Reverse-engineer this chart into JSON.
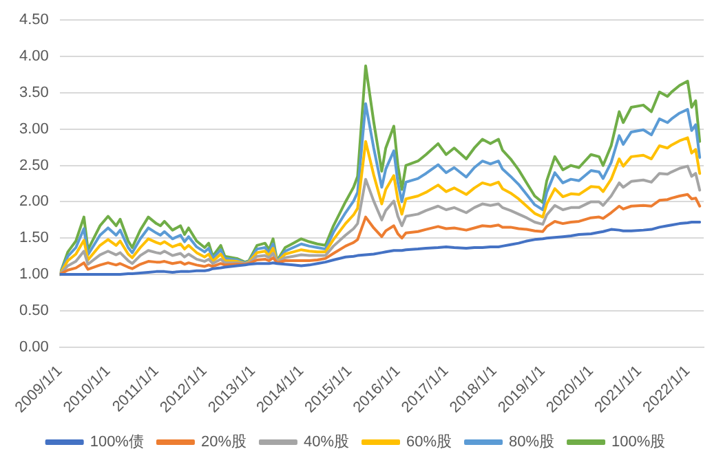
{
  "chart_data": {
    "type": "line",
    "x": [
      "2009-01",
      "2009-03",
      "2009-05",
      "2009-07",
      "2009-08",
      "2009-11",
      "2010-01",
      "2010-03",
      "2010-04",
      "2010-06",
      "2010-07",
      "2010-09",
      "2010-11",
      "2011-01",
      "2011-02",
      "2011-03",
      "2011-05",
      "2011-07",
      "2011-08",
      "2011-09",
      "2011-11",
      "2012-01",
      "2012-02",
      "2012-03",
      "2012-05",
      "2012-06",
      "2012-09",
      "2012-11",
      "2012-12",
      "2013-02",
      "2013-04",
      "2013-05",
      "2013-06",
      "2013-07",
      "2013-09",
      "2013-11",
      "2014-01",
      "2014-03",
      "2014-05",
      "2014-07",
      "2014-09",
      "2014-12",
      "2015-02",
      "2015-03",
      "2015-05",
      "2015-07",
      "2015-09",
      "2015-10",
      "2015-12",
      "2016-01",
      "2016-02",
      "2016-03",
      "2016-06",
      "2016-08",
      "2016-11",
      "2017-01",
      "2017-03",
      "2017-06",
      "2017-08",
      "2017-10",
      "2017-12",
      "2018-02",
      "2018-03",
      "2018-05",
      "2018-07",
      "2018-09",
      "2018-11",
      "2019-01",
      "2019-02",
      "2019-04",
      "2019-06",
      "2019-08",
      "2019-10",
      "2020-01",
      "2020-03",
      "2020-04",
      "2020-06",
      "2020-08",
      "2020-09",
      "2020-11",
      "2021-02",
      "2021-04",
      "2021-06",
      "2021-08",
      "2021-09",
      "2021-11",
      "2022-01",
      "2022-02",
      "2022-03",
      "2022-04"
    ],
    "series": [
      {
        "name": "100%债",
        "color": "#4472c4",
        "values": [
          1.0,
          1.0,
          1.0,
          1.0,
          1.0,
          1.0,
          1.0,
          1.0,
          1.0,
          1.01,
          1.01,
          1.02,
          1.03,
          1.04,
          1.04,
          1.04,
          1.03,
          1.04,
          1.04,
          1.04,
          1.05,
          1.05,
          1.06,
          1.08,
          1.09,
          1.1,
          1.12,
          1.13,
          1.14,
          1.15,
          1.15,
          1.15,
          1.16,
          1.15,
          1.14,
          1.13,
          1.12,
          1.13,
          1.15,
          1.17,
          1.2,
          1.24,
          1.25,
          1.26,
          1.27,
          1.28,
          1.3,
          1.31,
          1.33,
          1.33,
          1.33,
          1.34,
          1.35,
          1.36,
          1.37,
          1.38,
          1.37,
          1.36,
          1.37,
          1.37,
          1.38,
          1.38,
          1.39,
          1.41,
          1.43,
          1.46,
          1.48,
          1.49,
          1.5,
          1.51,
          1.52,
          1.53,
          1.55,
          1.56,
          1.58,
          1.59,
          1.62,
          1.61,
          1.6,
          1.6,
          1.61,
          1.62,
          1.65,
          1.67,
          1.68,
          1.7,
          1.71,
          1.72,
          1.72,
          1.72
        ]
      },
      {
        "name": "20%股",
        "color": "#ed7d31",
        "values": [
          1.0,
          1.06,
          1.09,
          1.16,
          1.07,
          1.13,
          1.16,
          1.13,
          1.15,
          1.1,
          1.08,
          1.14,
          1.18,
          1.17,
          1.17,
          1.18,
          1.15,
          1.17,
          1.14,
          1.16,
          1.13,
          1.11,
          1.13,
          1.11,
          1.15,
          1.13,
          1.14,
          1.14,
          1.15,
          1.2,
          1.21,
          1.19,
          1.23,
          1.16,
          1.19,
          1.19,
          1.19,
          1.19,
          1.2,
          1.22,
          1.29,
          1.39,
          1.44,
          1.48,
          1.79,
          1.64,
          1.52,
          1.6,
          1.67,
          1.56,
          1.5,
          1.57,
          1.59,
          1.62,
          1.66,
          1.63,
          1.64,
          1.61,
          1.64,
          1.67,
          1.66,
          1.68,
          1.65,
          1.65,
          1.63,
          1.62,
          1.6,
          1.59,
          1.66,
          1.73,
          1.7,
          1.72,
          1.73,
          1.78,
          1.79,
          1.77,
          1.85,
          1.94,
          1.9,
          1.94,
          1.95,
          1.94,
          2.02,
          2.03,
          2.05,
          2.08,
          2.1,
          2.04,
          2.05,
          1.94
        ]
      },
      {
        "name": "40%股",
        "color": "#a5a5a5",
        "values": [
          1.0,
          1.12,
          1.18,
          1.32,
          1.14,
          1.27,
          1.32,
          1.27,
          1.3,
          1.19,
          1.15,
          1.26,
          1.33,
          1.3,
          1.29,
          1.32,
          1.26,
          1.29,
          1.24,
          1.28,
          1.21,
          1.18,
          1.21,
          1.15,
          1.21,
          1.16,
          1.16,
          1.15,
          1.16,
          1.25,
          1.26,
          1.23,
          1.29,
          1.17,
          1.23,
          1.25,
          1.27,
          1.26,
          1.26,
          1.26,
          1.39,
          1.54,
          1.63,
          1.7,
          2.31,
          2.01,
          1.75,
          1.88,
          2.01,
          1.8,
          1.67,
          1.8,
          1.83,
          1.88,
          1.94,
          1.89,
          1.92,
          1.85,
          1.92,
          1.97,
          1.95,
          1.97,
          1.92,
          1.88,
          1.83,
          1.78,
          1.72,
          1.69,
          1.82,
          1.95,
          1.89,
          1.92,
          1.92,
          2.0,
          2.0,
          1.95,
          2.08,
          2.26,
          2.2,
          2.28,
          2.3,
          2.27,
          2.39,
          2.38,
          2.41,
          2.46,
          2.49,
          2.35,
          2.39,
          2.16
        ]
      },
      {
        "name": "60%股",
        "color": "#ffc000",
        "values": [
          1.0,
          1.19,
          1.28,
          1.47,
          1.2,
          1.4,
          1.48,
          1.4,
          1.46,
          1.28,
          1.23,
          1.37,
          1.49,
          1.44,
          1.42,
          1.45,
          1.38,
          1.42,
          1.35,
          1.4,
          1.3,
          1.24,
          1.28,
          1.18,
          1.28,
          1.19,
          1.18,
          1.15,
          1.17,
          1.3,
          1.32,
          1.26,
          1.36,
          1.17,
          1.28,
          1.31,
          1.34,
          1.32,
          1.31,
          1.31,
          1.48,
          1.7,
          1.82,
          1.91,
          2.83,
          2.37,
          1.97,
          2.17,
          2.36,
          2.03,
          1.83,
          2.04,
          2.08,
          2.13,
          2.23,
          2.14,
          2.19,
          2.1,
          2.19,
          2.26,
          2.23,
          2.27,
          2.18,
          2.12,
          2.04,
          1.94,
          1.84,
          1.79,
          1.97,
          2.18,
          2.07,
          2.11,
          2.1,
          2.21,
          2.2,
          2.14,
          2.31,
          2.59,
          2.49,
          2.62,
          2.64,
          2.59,
          2.77,
          2.74,
          2.78,
          2.84,
          2.88,
          2.67,
          2.72,
          2.39
        ]
      },
      {
        "name": "80%股",
        "color": "#5b9bd5",
        "values": [
          1.0,
          1.25,
          1.37,
          1.63,
          1.27,
          1.54,
          1.64,
          1.54,
          1.61,
          1.37,
          1.3,
          1.49,
          1.64,
          1.57,
          1.54,
          1.59,
          1.49,
          1.54,
          1.45,
          1.52,
          1.38,
          1.31,
          1.36,
          1.22,
          1.34,
          1.22,
          1.2,
          1.16,
          1.18,
          1.35,
          1.37,
          1.3,
          1.42,
          1.18,
          1.32,
          1.37,
          1.42,
          1.39,
          1.37,
          1.35,
          1.58,
          1.85,
          2.01,
          2.13,
          3.35,
          2.74,
          2.2,
          2.45,
          2.7,
          2.27,
          2.0,
          2.27,
          2.32,
          2.39,
          2.51,
          2.4,
          2.47,
          2.34,
          2.47,
          2.56,
          2.52,
          2.56,
          2.45,
          2.35,
          2.24,
          2.1,
          1.96,
          1.89,
          2.13,
          2.4,
          2.26,
          2.31,
          2.29,
          2.43,
          2.41,
          2.32,
          2.54,
          2.91,
          2.79,
          2.96,
          2.99,
          2.92,
          3.14,
          3.09,
          3.14,
          3.22,
          3.27,
          2.98,
          3.06,
          2.61
        ]
      },
      {
        "name": "100%股",
        "color": "#70ad47",
        "values": [
          1.0,
          1.31,
          1.46,
          1.79,
          1.34,
          1.67,
          1.8,
          1.67,
          1.76,
          1.46,
          1.37,
          1.61,
          1.79,
          1.7,
          1.67,
          1.73,
          1.61,
          1.67,
          1.55,
          1.64,
          1.46,
          1.37,
          1.43,
          1.25,
          1.4,
          1.25,
          1.22,
          1.17,
          1.19,
          1.4,
          1.43,
          1.34,
          1.49,
          1.19,
          1.37,
          1.43,
          1.49,
          1.45,
          1.42,
          1.4,
          1.67,
          2.0,
          2.2,
          2.35,
          3.87,
          3.1,
          2.42,
          2.74,
          3.04,
          2.5,
          2.17,
          2.5,
          2.56,
          2.65,
          2.8,
          2.65,
          2.74,
          2.59,
          2.74,
          2.86,
          2.8,
          2.86,
          2.71,
          2.59,
          2.44,
          2.26,
          2.08,
          1.99,
          2.29,
          2.62,
          2.44,
          2.5,
          2.47,
          2.65,
          2.62,
          2.5,
          2.77,
          3.24,
          3.09,
          3.3,
          3.33,
          3.24,
          3.51,
          3.45,
          3.51,
          3.6,
          3.66,
          3.3,
          3.39,
          2.83
        ]
      }
    ],
    "xlim": [
      "2009-01",
      "2022-05"
    ],
    "xticks": [
      {
        "value": "2009-01",
        "label": "2009/1/1"
      },
      {
        "value": "2010-01",
        "label": "2010/1/1"
      },
      {
        "value": "2011-01",
        "label": "2011/1/1"
      },
      {
        "value": "2012-01",
        "label": "2012/1/1"
      },
      {
        "value": "2013-01",
        "label": "2013/1/1"
      },
      {
        "value": "2014-01",
        "label": "2014/1/1"
      },
      {
        "value": "2015-01",
        "label": "2015/1/1"
      },
      {
        "value": "2016-01",
        "label": "2016/1/1"
      },
      {
        "value": "2017-01",
        "label": "2017/1/1"
      },
      {
        "value": "2018-01",
        "label": "2018/1/1"
      },
      {
        "value": "2019-01",
        "label": "2019/1/1"
      },
      {
        "value": "2020-01",
        "label": "2020/1/1"
      },
      {
        "value": "2021-01",
        "label": "2021/1/1"
      },
      {
        "value": "2022-01",
        "label": "2022/1/1"
      }
    ],
    "ylim": [
      0,
      4.5
    ],
    "yticks": [
      {
        "value": 0,
        "label": "0.00"
      },
      {
        "value": 0.5,
        "label": "0.50"
      },
      {
        "value": 1,
        "label": "1.00"
      },
      {
        "value": 1.5,
        "label": "1.50"
      },
      {
        "value": 2,
        "label": "2.00"
      },
      {
        "value": 2.5,
        "label": "2.50"
      },
      {
        "value": 3,
        "label": "3.00"
      },
      {
        "value": 3.5,
        "label": "3.50"
      },
      {
        "value": 4,
        "label": "4.00"
      },
      {
        "value": 4.5,
        "label": "4.50"
      }
    ],
    "grid": "y",
    "legend": "bottom",
    "marker": "none",
    "line_style": "solid"
  }
}
